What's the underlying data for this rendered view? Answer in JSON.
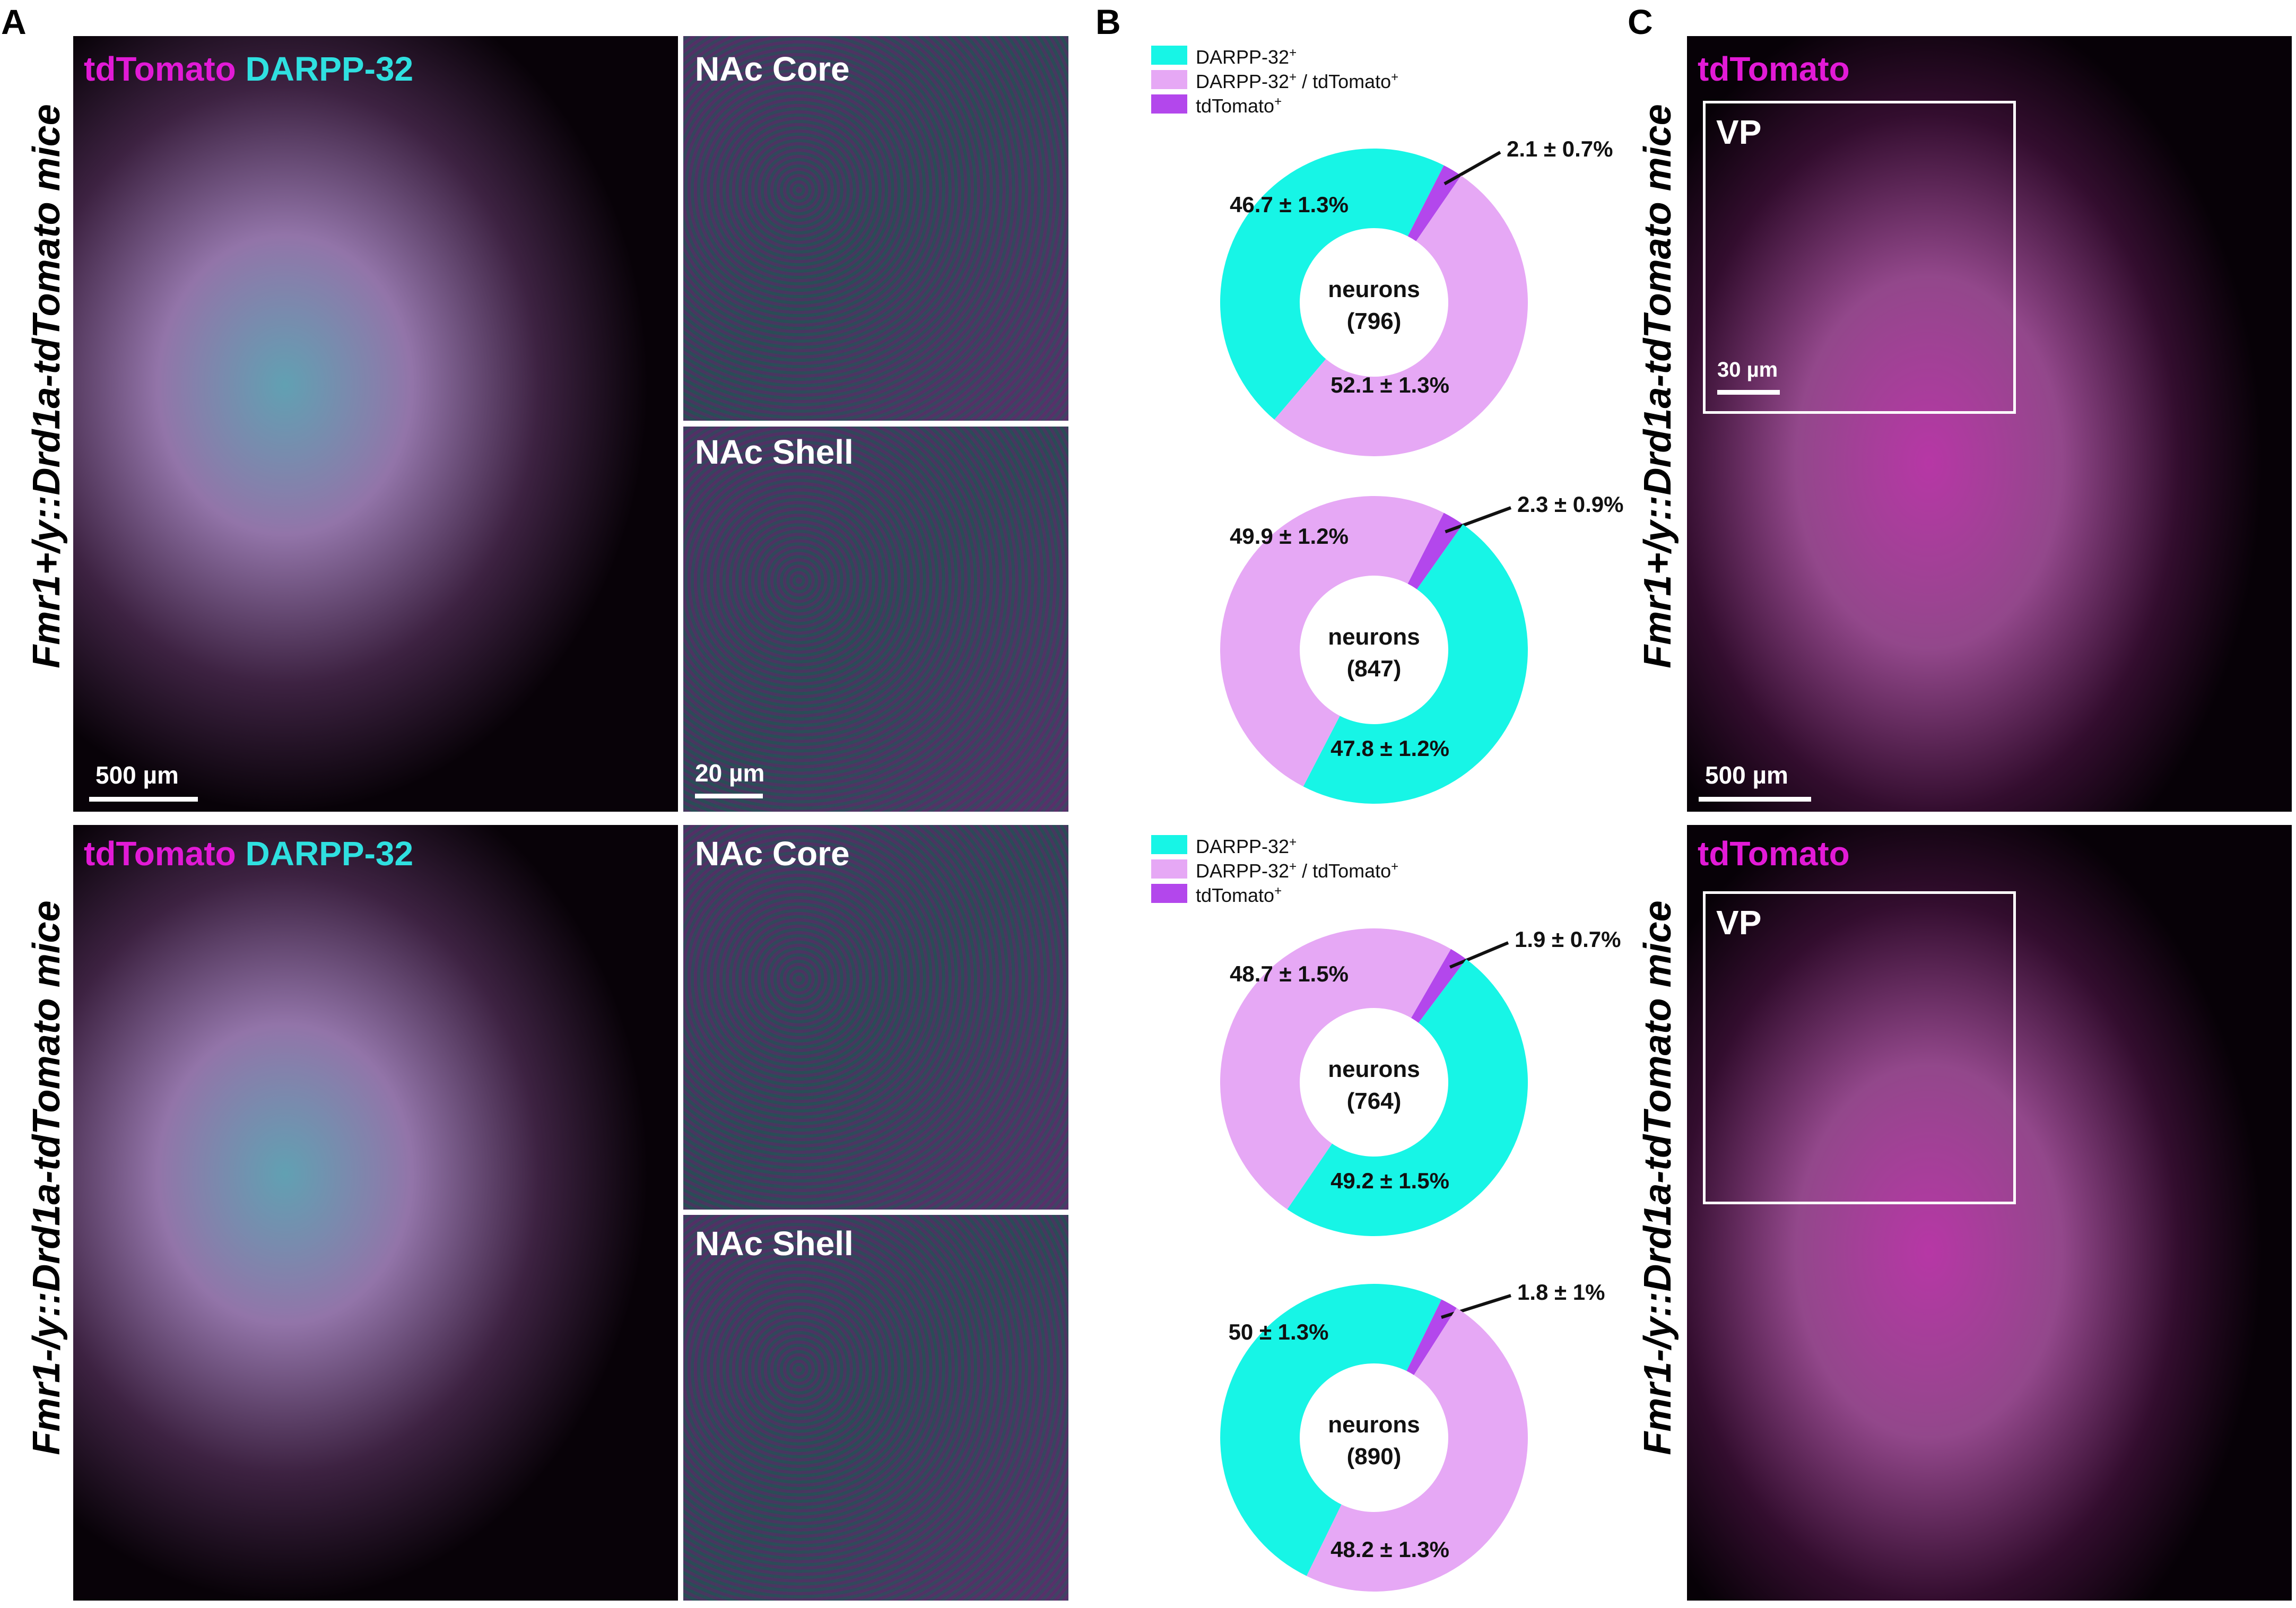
{
  "panel_labels": {
    "a": "A",
    "b": "B",
    "c": "C"
  },
  "row_labels": {
    "top": "Fmr1+/y::Drd1a-tdTomato mice",
    "bottom": "Fmr1-/y::Drd1a-tdTomato mice"
  },
  "panel_a": {
    "channel_magenta": "tdTomato",
    "channel_cyan": "DARPP-32",
    "inset_core": "NAc Core",
    "inset_shell": "NAc Shell",
    "scale_large": "500 µm",
    "scale_small": "20 µm"
  },
  "panel_c": {
    "channel_magenta": "tdTomato",
    "inset_label": "VP",
    "scale_small": "30 µm",
    "scale_large": "500 µm"
  },
  "legend": {
    "items": [
      {
        "name": "DARPP-32",
        "sup": "+",
        "suffix": "",
        "suffix_sup": "",
        "color": "#17f5e6"
      },
      {
        "name": "DARPP-32",
        "sup": "+",
        "suffix": " / tdTomato",
        "suffix_sup": "+",
        "color": "#e6a8f5"
      },
      {
        "name": "tdTomato",
        "sup": "+",
        "suffix": "",
        "suffix_sup": "",
        "color": "#b347ec"
      }
    ]
  },
  "colors": {
    "cyan": "#17f5e6",
    "pink": "#e6a8f5",
    "purple": "#b347ec",
    "magenta_text": "#e21ad6"
  },
  "chart_data": [
    {
      "type": "pie",
      "variant": "donut",
      "center_label": "neurons",
      "center_count": "(796)",
      "slices": [
        {
          "category": "tdTomato+",
          "value": 2.1,
          "label": "2.1 ± 0.7%"
        },
        {
          "category": "DARPP-32+ / tdTomato+",
          "value": 52.1,
          "label": "52.1 ± 1.3%"
        },
        {
          "category": "DARPP-32+",
          "value": 46.7,
          "label": "46.7 ± 1.3%"
        }
      ]
    },
    {
      "type": "pie",
      "variant": "donut",
      "center_label": "neurons",
      "center_count": "(847)",
      "slices": [
        {
          "category": "tdTomato+",
          "value": 2.3,
          "label": "2.3 ± 0.9%"
        },
        {
          "category": "DARPP-32+",
          "value": 47.8,
          "label": "47.8 ± 1.2%"
        },
        {
          "category": "DARPP-32+ / tdTomato+",
          "value": 49.9,
          "label": "49.9 ± 1.2%"
        }
      ]
    },
    {
      "type": "pie",
      "variant": "donut",
      "center_label": "neurons",
      "center_count": "(764)",
      "slices": [
        {
          "category": "tdTomato+",
          "value": 1.9,
          "label": "1.9 ± 0.7%"
        },
        {
          "category": "DARPP-32+",
          "value": 49.2,
          "label": "49.2 ± 1.5%"
        },
        {
          "category": "DARPP-32+ / tdTomato+",
          "value": 48.7,
          "label": "48.7 ± 1.5%"
        }
      ]
    },
    {
      "type": "pie",
      "variant": "donut",
      "center_label": "neurons",
      "center_count": "(890)",
      "slices": [
        {
          "category": "tdTomato+",
          "value": 1.8,
          "label": "1.8 ± 1%"
        },
        {
          "category": "DARPP-32+ / tdTomato+",
          "value": 48.2,
          "label": "48.2 ± 1.3%"
        },
        {
          "category": "DARPP-32+",
          "value": 50,
          "label": "50 ± 1.3%"
        }
      ]
    }
  ]
}
